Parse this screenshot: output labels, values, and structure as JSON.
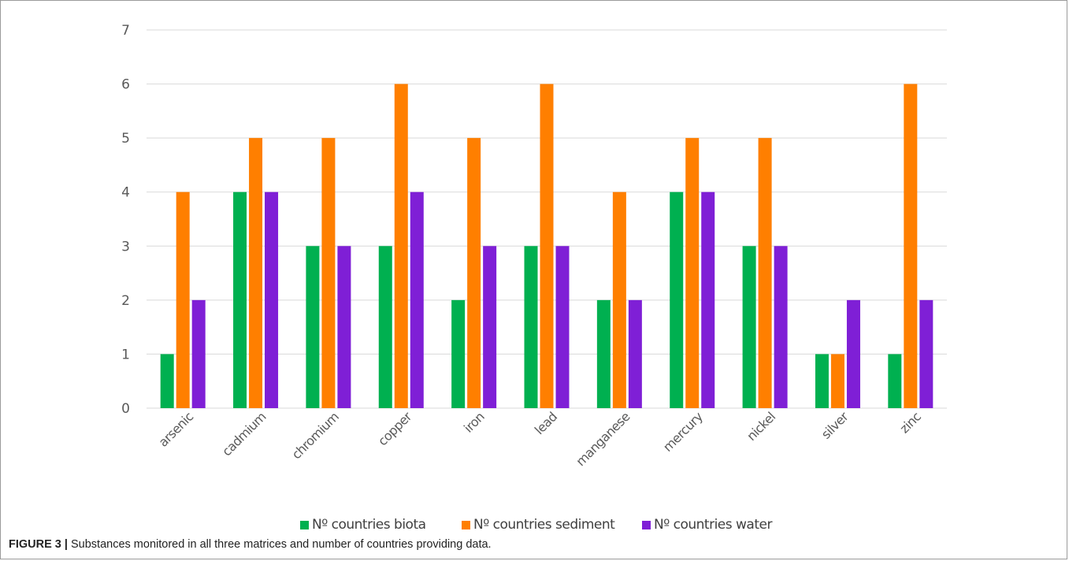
{
  "caption": {
    "label": "FIGURE 3 |",
    "text": "Substances monitored in all three matrices and number of countries providing data."
  },
  "chart_data": {
    "type": "bar",
    "title": "",
    "xlabel": "",
    "ylabel": "",
    "ylim": [
      0,
      7
    ],
    "yticks": [
      "0",
      "1",
      "2",
      "3",
      "4",
      "5",
      "6",
      "7"
    ],
    "grid": true,
    "legend_position": "bottom",
    "categories": [
      "arsenic",
      "cadmium",
      "chromium",
      "copper",
      "iron",
      "lead",
      "manganese",
      "mercury",
      "nickel",
      "silver",
      "zinc"
    ],
    "series": [
      {
        "name": "Nº countries biota",
        "color": "#00b050",
        "values": [
          1,
          4,
          3,
          3,
          2,
          3,
          2,
          4,
          3,
          1,
          1
        ]
      },
      {
        "name": "Nº countries sediment",
        "color": "#ff7f00",
        "values": [
          4,
          5,
          5,
          6,
          5,
          6,
          4,
          5,
          5,
          1,
          6
        ]
      },
      {
        "name": "Nº countries water",
        "color": "#7f1fd6",
        "values": [
          2,
          4,
          3,
          4,
          3,
          3,
          2,
          4,
          3,
          2,
          2
        ]
      }
    ]
  }
}
